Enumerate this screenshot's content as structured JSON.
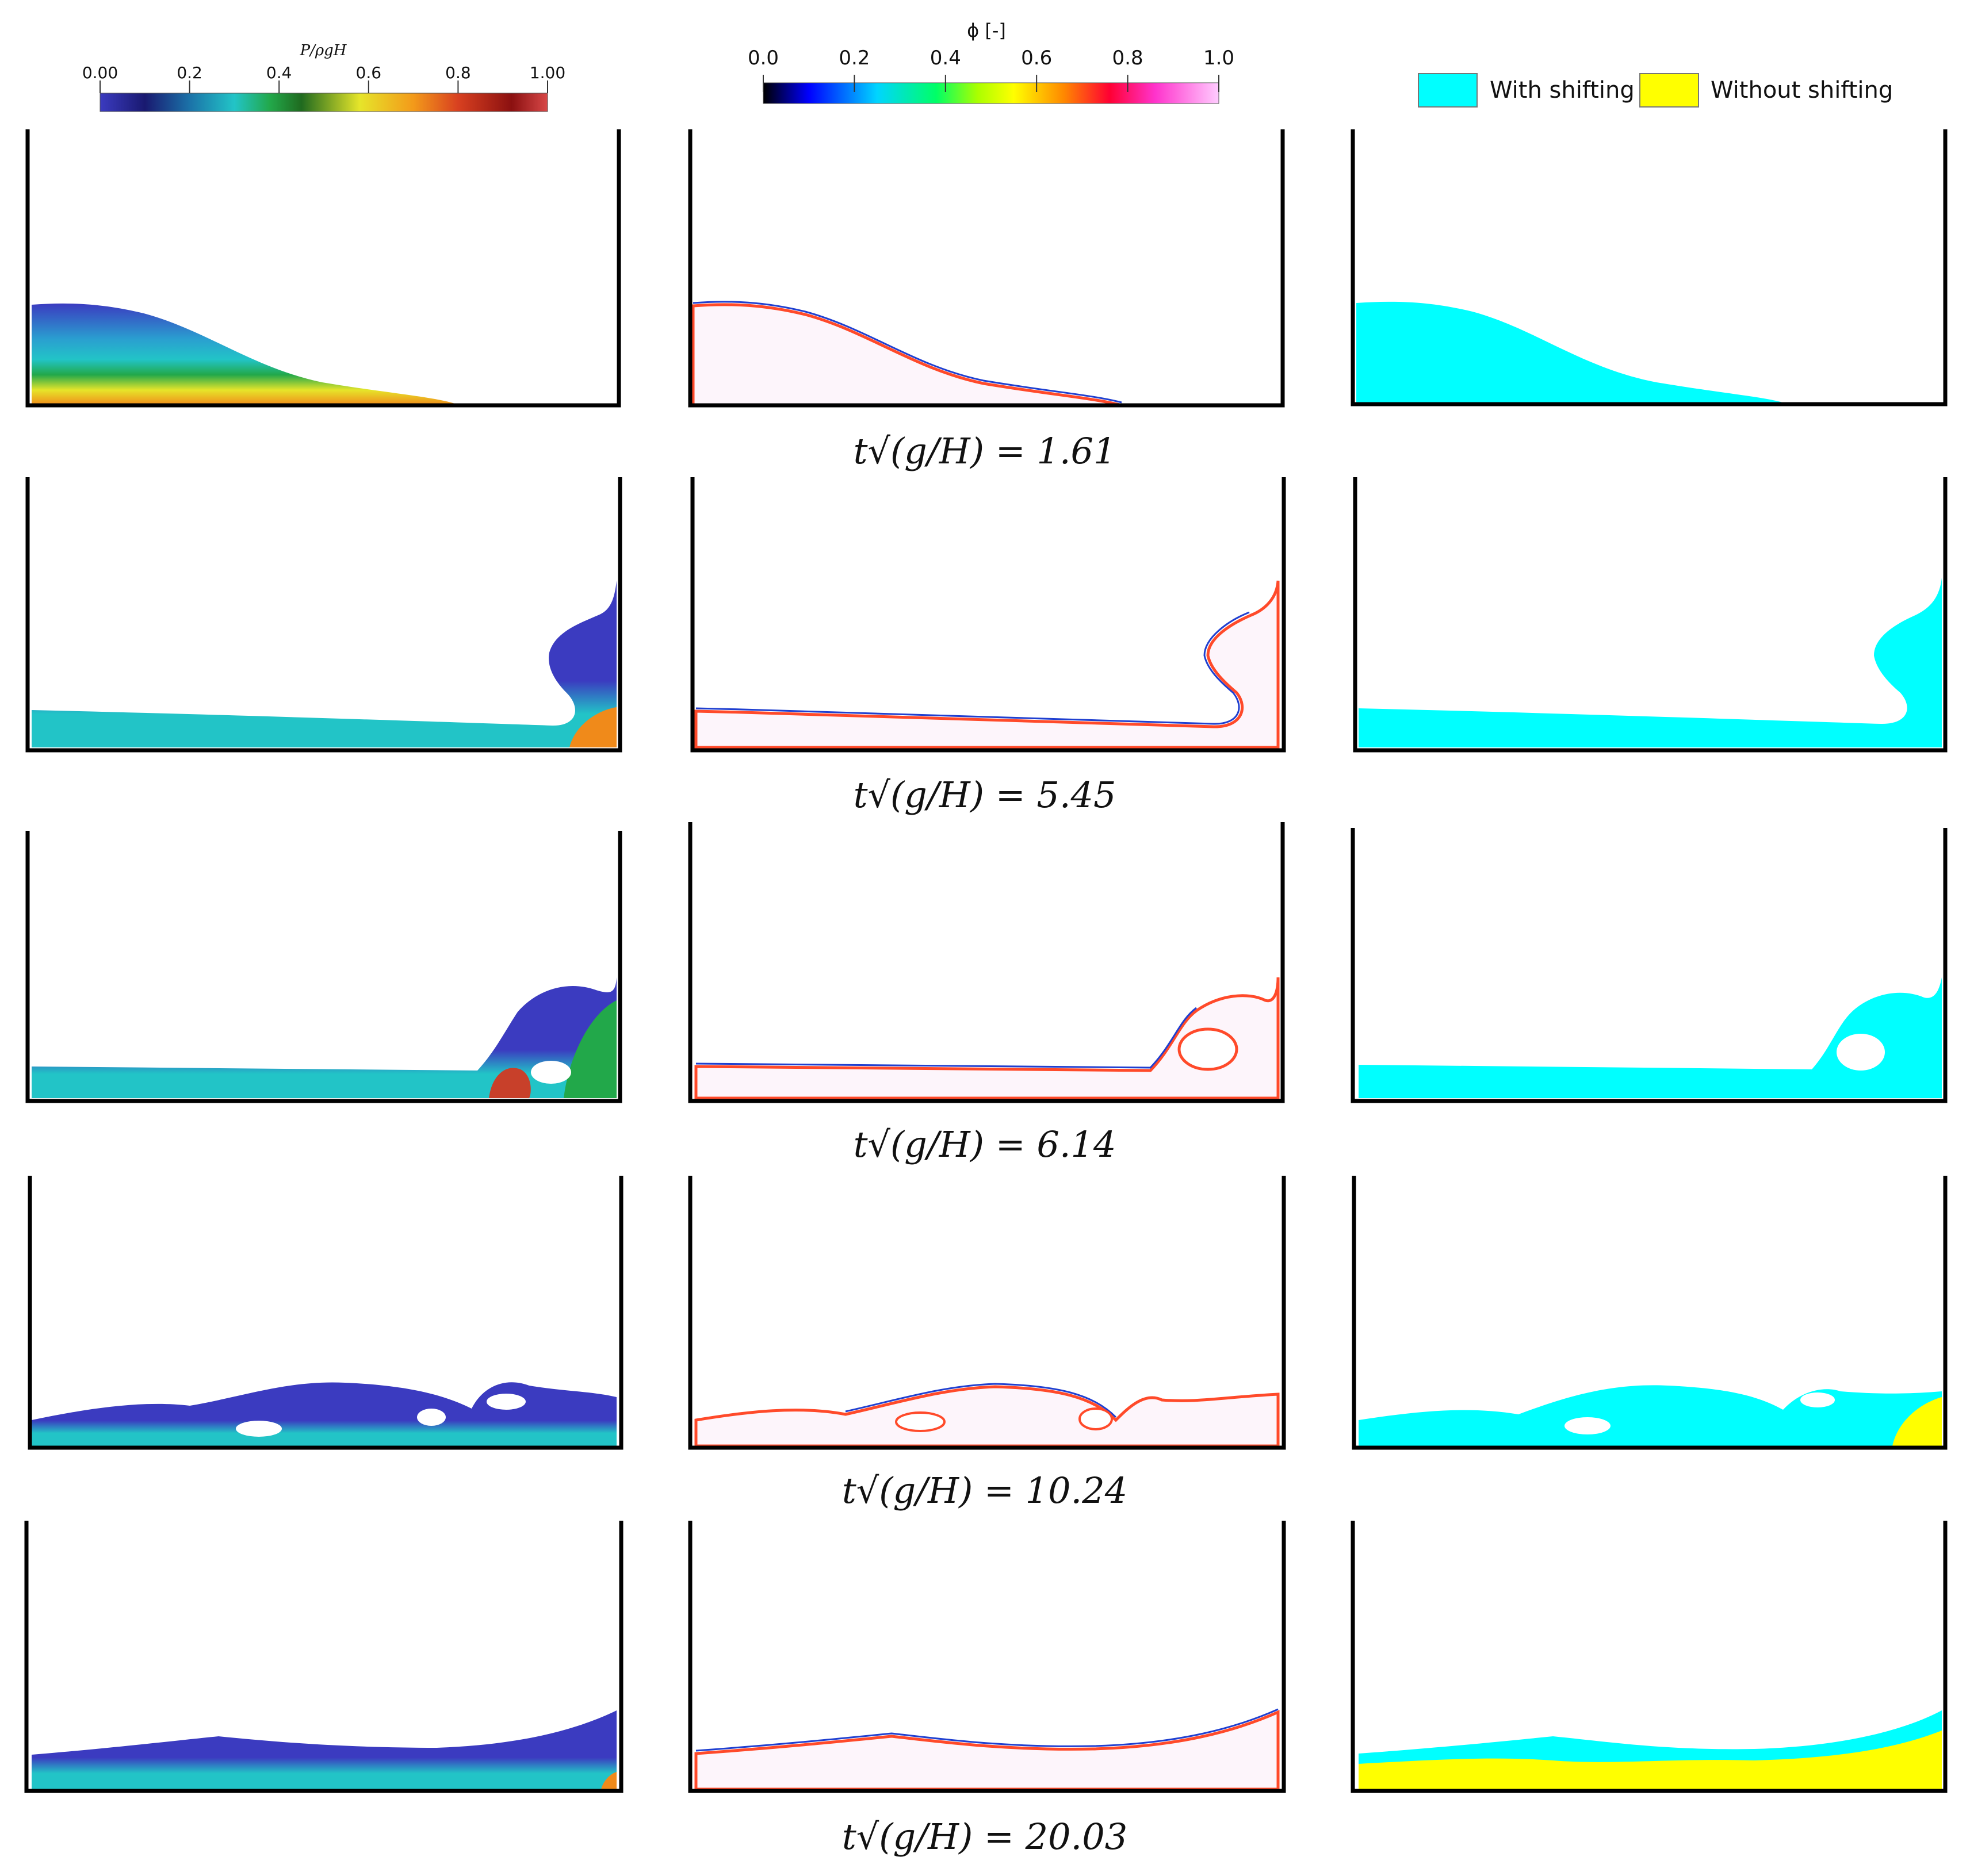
{
  "colorbars": {
    "pressure": {
      "title": "P/ρgH",
      "ticks": [
        "0.00",
        "0.2",
        "0.4",
        "0.6",
        "0.8",
        "1.00"
      ],
      "stops": [
        "#3b3bc0",
        "#191970",
        "#1b72a8",
        "#22c4c7",
        "#22a84a",
        "#1f6a1f",
        "#e6e52a",
        "#f39a1a",
        "#d84020",
        "#8b1010",
        "#d84848"
      ]
    },
    "phi": {
      "title": "ϕ  [-]",
      "ticks": [
        "0.0",
        "0.2",
        "0.4",
        "0.6",
        "0.8",
        "1.0"
      ],
      "stops": [
        "#000000",
        "#0000ff",
        "#00d5ff",
        "#00ff66",
        "#aaff00",
        "#ffff00",
        "#ff8800",
        "#ff0033",
        "#ff33cc",
        "#ffccff"
      ]
    }
  },
  "legend": {
    "items": [
      {
        "label": "With shifting",
        "color": "#00ffff"
      },
      {
        "label": "Without shifting",
        "color": "#ffff00"
      }
    ]
  },
  "columns": [
    "pressure",
    "phi",
    "shifting"
  ],
  "rows": [
    {
      "time_label": "t√(g/H) = 1.61",
      "value": "1.61"
    },
    {
      "time_label": "t√(g/H) = 5.45",
      "value": "5.45"
    },
    {
      "time_label": "t√(g/H) = 6.14",
      "value": "6.14"
    },
    {
      "time_label": "t√(g/H) = 10.24",
      "value": "10.24"
    },
    {
      "time_label": "t√(g/H) = 20.03",
      "value": "20.03"
    }
  ],
  "colors": {
    "wall": "#000000",
    "pressure_low": "#3b3bc0",
    "pressure_mid": "#22c4c7",
    "pressure_high": "#f08a1a",
    "phi_fill": "#fdf5fb",
    "cyan": "#00ffff",
    "yellow": "#ffff00"
  }
}
